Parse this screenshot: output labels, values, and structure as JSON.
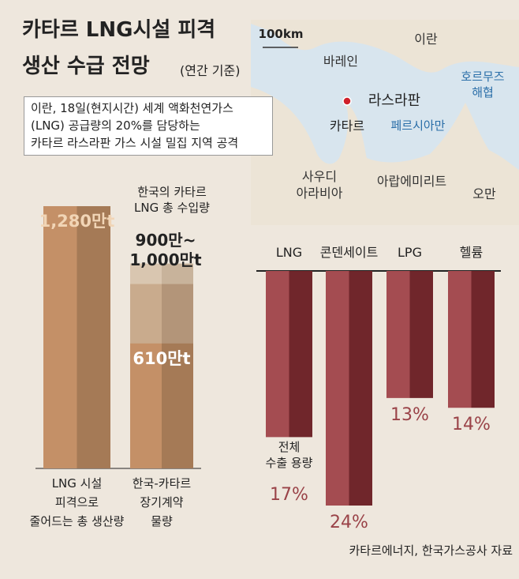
{
  "header": {
    "title": [
      "카타르 LNG시설 피격",
      "생산 수급 전망"
    ],
    "subtitle": "(연간 기준)"
  },
  "note": "이란, 18일(현지시간) 세계 액화천연가스\n(LNG) 공급량의 20%를 담당하는\n카타르 라스라판 가스 시설 밀집 지역 공격",
  "map": {
    "scale": "100km",
    "labels": [
      "이란",
      "바레인",
      "라스라판",
      "호르무즈\n해협",
      "카타르",
      "페르시아만",
      "사우디\n아라비아",
      "아랍에미리트",
      "오만"
    ]
  },
  "chart_data": [
    {
      "type": "bar",
      "annotation": "한국의 카타르\nLNG 총 수입량",
      "categories": [
        "LNG 시설\n피격으로\n줄어드는 총 생산량",
        "한국-카타르\n장기계약\n물량"
      ],
      "values": [
        1280,
        610
      ],
      "value_labels": [
        "1,280만t",
        "610만t"
      ],
      "range": {
        "values": [
          900,
          1000
        ],
        "label": "900만~\n1,000만t"
      },
      "color": "#b8875f"
    },
    {
      "type": "bar",
      "orientation": "down",
      "annotation": "전체\n수출 용량",
      "categories": [
        "LNG",
        "콘덴세이트",
        "LPG",
        "헬륨"
      ],
      "values": [
        17,
        24,
        13,
        14
      ],
      "value_labels": [
        "17%",
        "24%",
        "13%",
        "14%"
      ],
      "color": "#9a4348"
    }
  ],
  "source": "카타르에너지, 한국가스공사 자료"
}
